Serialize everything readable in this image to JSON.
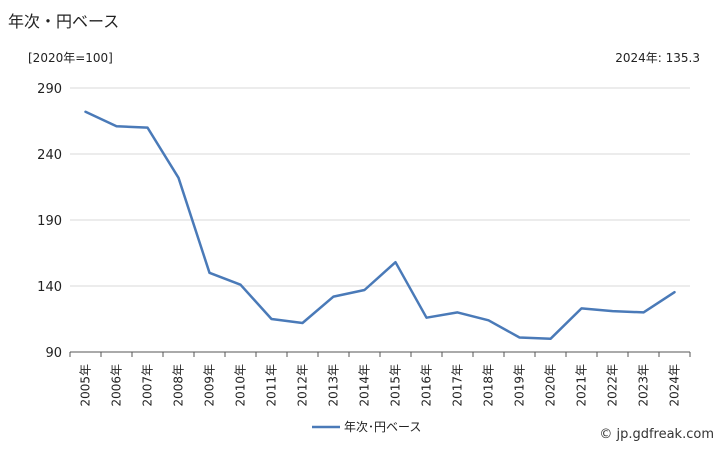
{
  "header": {
    "title": "年次・円ベース",
    "unit": "[2020年=100]",
    "latest": "2024年: 135.3"
  },
  "footer": {
    "credit": "© jp.gdfreak.com"
  },
  "colors": {
    "series": "#4a7ab8",
    "grid": "#d9d9d9",
    "axis": "#555555"
  },
  "chart_data": {
    "type": "line",
    "title": "年次・円ベース",
    "xlabel": "",
    "ylabel": "",
    "ylim": [
      90,
      290
    ],
    "yticks": [
      90,
      140,
      190,
      240,
      290
    ],
    "grid": true,
    "legend_position": "bottom",
    "categories": [
      "2005年",
      "2006年",
      "2007年",
      "2008年",
      "2009年",
      "2010年",
      "2011年",
      "2012年",
      "2013年",
      "2014年",
      "2015年",
      "2016年",
      "2017年",
      "2018年",
      "2019年",
      "2020年",
      "2021年",
      "2022年",
      "2023年",
      "2024年"
    ],
    "series": [
      {
        "name": "年次･円ベース",
        "values": [
          272,
          261,
          260,
          222,
          150,
          141,
          115,
          112,
          132,
          137,
          158,
          116,
          120,
          114,
          101,
          100,
          123,
          121,
          120,
          135.3
        ]
      }
    ]
  }
}
